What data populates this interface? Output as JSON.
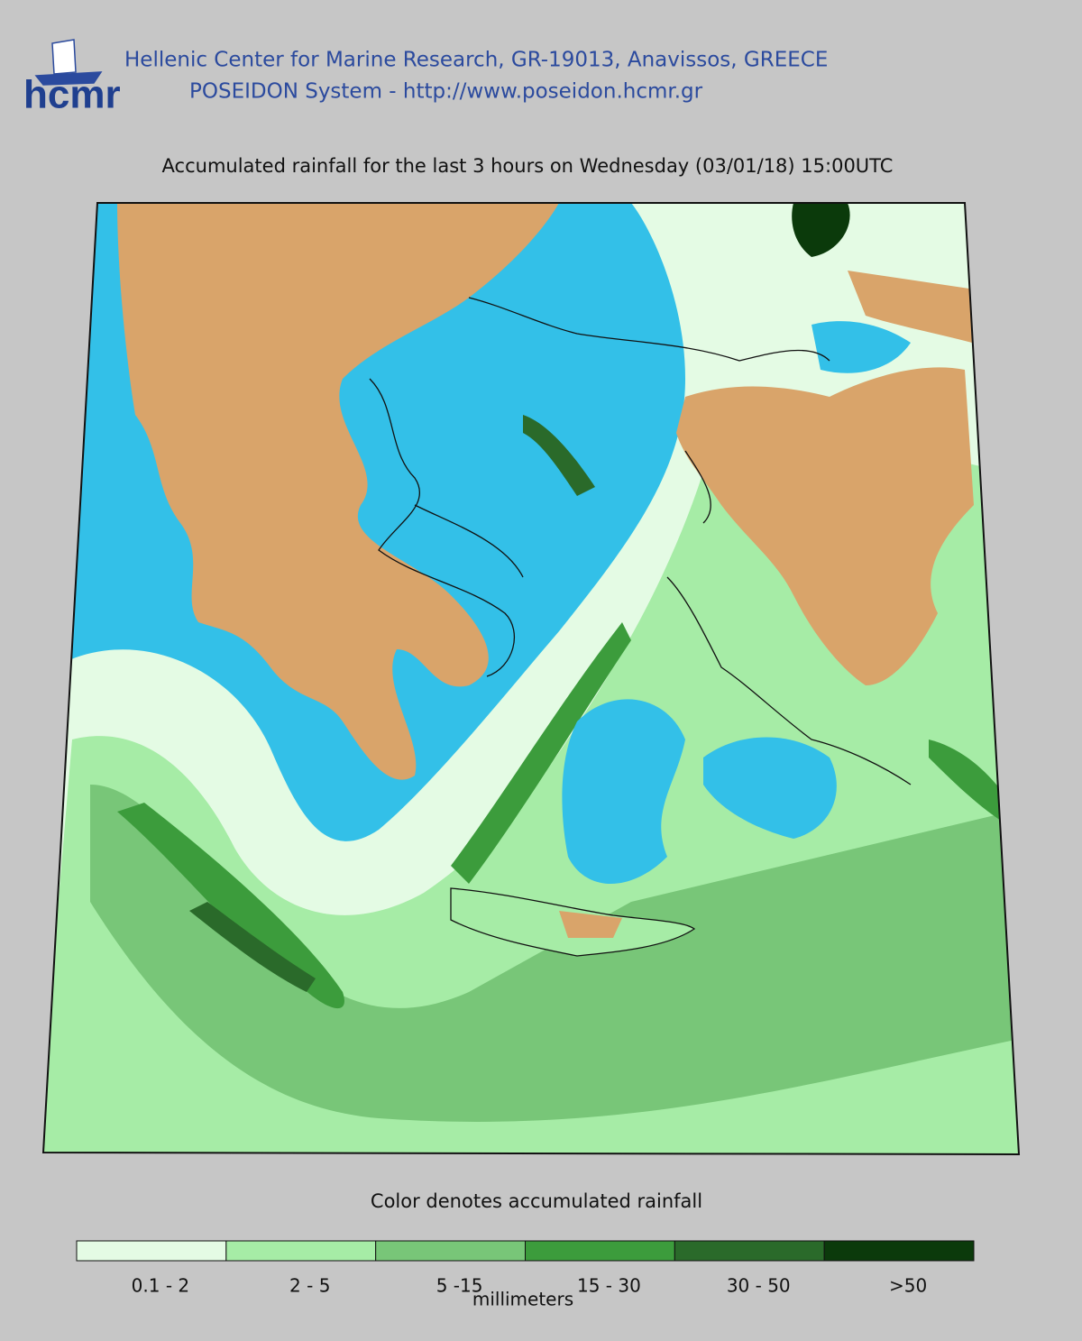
{
  "header": {
    "logo": "hcmr",
    "organization": "Hellenic Center for Marine Research, GR-19013, Anavissos, GREECE",
    "system": "POSEIDON System - http://www.poseidon.hcmr.gr"
  },
  "map": {
    "title": "Accumulated rainfall for the last 3 hours on Wednesday (03/01/18) 15:00UTC"
  },
  "legend": {
    "caption": "Color denotes accumulated rainfall",
    "unit": "millimeters",
    "items": [
      {
        "label": "0.1 - 2",
        "color": "#e4fbe4"
      },
      {
        "label": "2 - 5",
        "color": "#a6eca6"
      },
      {
        "label": "5 -15",
        "color": "#78c678"
      },
      {
        "label": "15 - 30",
        "color": "#3c9c3c"
      },
      {
        "label": "30 - 50",
        "color": "#2a6a2a"
      },
      {
        "label": ">50",
        "color": "#0b3a0b"
      }
    ]
  }
}
